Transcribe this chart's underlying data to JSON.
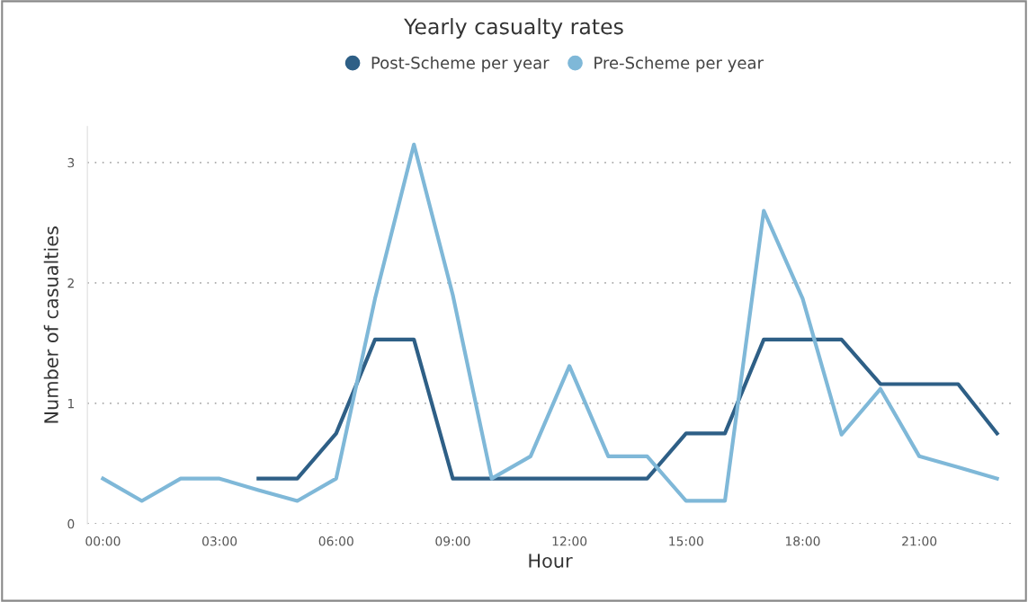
{
  "chart_data": {
    "type": "line",
    "title": "Yearly casualty rates",
    "xlabel": "Hour",
    "ylabel": "Number of casualties",
    "x": [
      0,
      1,
      2,
      3,
      4,
      5,
      6,
      7,
      8,
      9,
      10,
      11,
      12,
      13,
      14,
      15,
      16,
      17,
      18,
      19,
      20,
      21,
      22,
      23
    ],
    "series": [
      {
        "name": "Post-Scheme per year",
        "color": "#2e5f86",
        "values": [
          null,
          null,
          null,
          null,
          0.375,
          0.375,
          0.75,
          1.53,
          1.53,
          0.375,
          0.375,
          0.375,
          0.375,
          0.375,
          0.375,
          0.75,
          0.75,
          1.53,
          1.53,
          1.53,
          1.16,
          1.16,
          1.16,
          0.75
        ]
      },
      {
        "name": "Pre-Scheme per year",
        "color": "#7fb8d8",
        "values": [
          0.375,
          0.19,
          0.375,
          0.375,
          0.28,
          0.19,
          0.375,
          1.87,
          3.15,
          1.9,
          0.375,
          0.56,
          1.31,
          0.56,
          0.56,
          0.19,
          0.19,
          2.6,
          1.87,
          0.74,
          1.12,
          0.56,
          0.47,
          0.375
        ]
      }
    ],
    "xlim": [
      -0.4,
      23.4
    ],
    "xticks": [
      {
        "value": 0,
        "label": "00:00"
      },
      {
        "value": 3,
        "label": "03:00"
      },
      {
        "value": 6,
        "label": "06:00"
      },
      {
        "value": 9,
        "label": "09:00"
      },
      {
        "value": 12,
        "label": "12:00"
      },
      {
        "value": 15,
        "label": "15:00"
      },
      {
        "value": 18,
        "label": "18:00"
      },
      {
        "value": 21,
        "label": "21:00"
      }
    ],
    "ylim": [
      0,
      3.3
    ],
    "yticks": [
      0,
      1,
      2,
      3
    ],
    "grid": "y",
    "legend": "top",
    "marker": "none",
    "line_style": "solid"
  }
}
